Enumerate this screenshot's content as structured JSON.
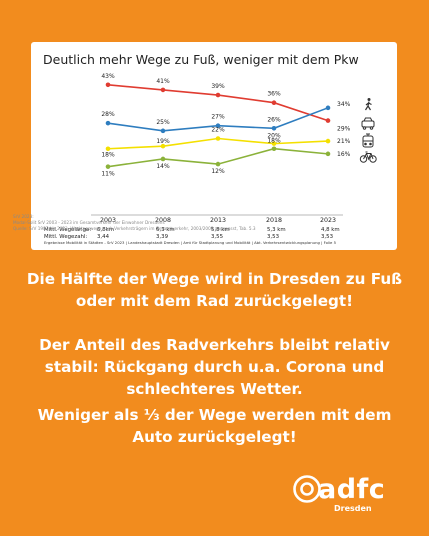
{
  "chart_data": {
    "type": "line",
    "title": "Deutlich mehr Wege zu Fuß, weniger mit dem Pkw",
    "x": [
      "2003",
      "2008",
      "2013",
      "2018",
      "2023"
    ],
    "ylim": [
      5,
      48
    ],
    "grid": false,
    "series": [
      {
        "name": "Pkw",
        "color": "#e03c31",
        "icon": "car-icon",
        "values": [
          43,
          41,
          39,
          36,
          29
        ]
      },
      {
        "name": "zu Fuß",
        "color": "#2e7dbf",
        "icon": "pedestrian-icon",
        "values": [
          28,
          25,
          27,
          26,
          34
        ]
      },
      {
        "name": "ÖPNV",
        "color": "#f4e000",
        "icon": "tram-icon",
        "values": [
          18,
          19,
          22,
          20,
          21
        ]
      },
      {
        "name": "Rad",
        "color": "#8bb23a",
        "icon": "bicycle-icon",
        "values": [
          11,
          14,
          12,
          18,
          16
        ]
      }
    ],
    "data_labels": [
      [
        "43%",
        "41%",
        "39%",
        "36%",
        "29%"
      ],
      [
        "28%",
        "25%",
        "27%",
        "26%",
        "34%"
      ],
      [
        "18%",
        "19%",
        "22%",
        "20%",
        "21%"
      ],
      [
        "11%",
        "14%",
        "12%",
        "18%",
        "16%"
      ]
    ]
  },
  "metrics": {
    "wegelaenge_label": "Mittl. Wegelänge:",
    "wegezahl_label": "Mittl. Wegezahl:",
    "wegelaenge": [
      "6,8km",
      "6,3 km",
      "5,8 km",
      "5,3 km",
      "4,8 km"
    ],
    "wegezahl": [
      "3,44",
      "3,39",
      "3,55",
      "3,53",
      "3,53"
    ]
  },
  "notes": {
    "line1": "SrV 2023:",
    "line2": "Modal-Split SrV 2003 - 2023 im Gesamtverkehr der Einwohner Dresdens",
    "line3": "Quelle: SrV 1987 bis 2023, Werktagswege nach Verkehrsträgern im Gesamtverkehr, 2003/2008 angepasst, Tab. 5.3",
    "footer": "Ergebnisse Mobilität in Städten - SrV 2023 | Landeshauptstadt Dresden | Amt für Stadtplanung und Mobilität | Abt. Verkehrsentwicklungsplanung | Folie 5"
  },
  "messages": {
    "m1_l1": "Die Hälfte der Wege wird in Dresden zu Fuß",
    "m1_l2": "oder mit dem Rad zurückgelegt!",
    "m2_l1": "Der Anteil des Radverkehrs bleibt relativ",
    "m2_l2": "stabil: Rückgang durch u.a. Corona und",
    "m2_l3": "schlechteres Wetter.",
    "m3_l1": "Weniger als ⅓ der Wege werden mit dem",
    "m3_l2": "Auto zurückgelegt!"
  },
  "logo": {
    "name": "adfc",
    "sub": "Dresden"
  }
}
